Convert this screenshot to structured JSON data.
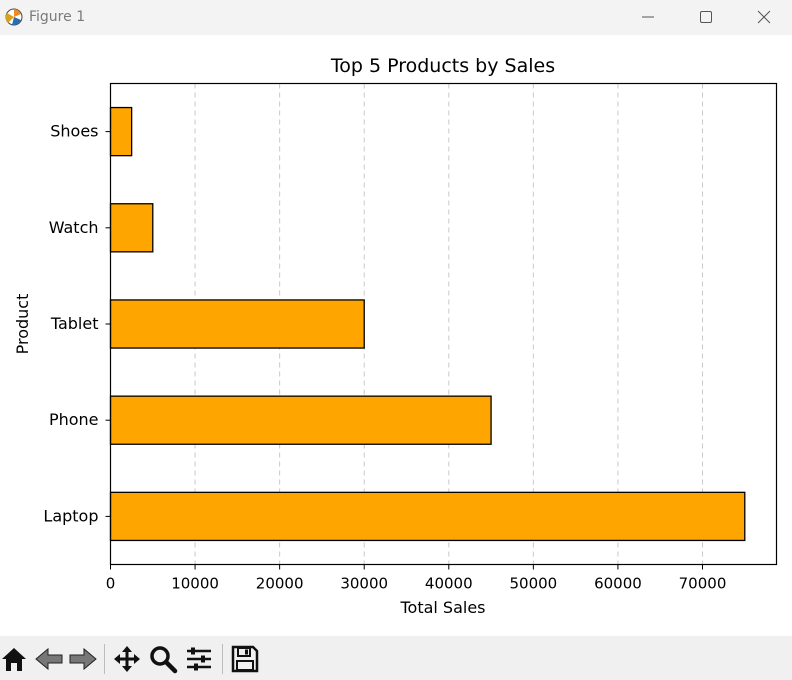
{
  "window": {
    "title": "Figure 1"
  },
  "toolbar": {
    "tools": [
      {
        "name": "home-icon"
      },
      {
        "name": "back-icon"
      },
      {
        "name": "forward-icon"
      },
      {
        "name": "pan-icon"
      },
      {
        "name": "zoom-icon"
      },
      {
        "name": "configure-subplots-icon"
      },
      {
        "name": "save-icon"
      }
    ]
  },
  "colors": {
    "bar": "#ffa500",
    "edge": "#000000",
    "grid": "#c8c8c8"
  },
  "chart_data": {
    "type": "bar",
    "orientation": "horizontal",
    "title": "Top 5 Products by Sales",
    "xlabel": "Total Sales",
    "ylabel": "Product",
    "categories": [
      "Laptop",
      "Phone",
      "Tablet",
      "Watch",
      "Shoes"
    ],
    "values": [
      75000,
      45000,
      30000,
      5000,
      2500
    ],
    "xlim": [
      0,
      78750
    ],
    "xticks": [
      0,
      10000,
      20000,
      30000,
      40000,
      50000,
      60000,
      70000
    ],
    "xtick_labels": [
      "0",
      "10000",
      "20000",
      "30000",
      "40000",
      "50000",
      "60000",
      "70000"
    ],
    "grid": "x-axis, dashed"
  }
}
